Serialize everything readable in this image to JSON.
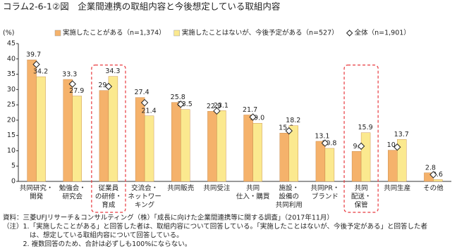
{
  "chart_data": {
    "type": "bar",
    "title": "コラム2-6-1②図　企業間連携の取組内容と今後想定している取組内容",
    "y_unit_label": "(%)",
    "categories": [
      [
        "共同研究・",
        "開発"
      ],
      [
        "勉強会・",
        "研究会"
      ],
      [
        "従業員",
        "の研修・",
        "育成"
      ],
      [
        "交流会・",
        "ネットワー",
        "キング"
      ],
      [
        "共同販売"
      ],
      [
        "共同受注"
      ],
      [
        "共同",
        "仕入・購買"
      ],
      [
        "施設・",
        "設備の",
        "共同利用"
      ],
      [
        "共同PR・",
        "ブランド"
      ],
      [
        "共同",
        "配送・",
        "保管"
      ],
      [
        "共同生産"
      ],
      [
        "その他"
      ]
    ],
    "series": [
      {
        "name": "実施したことがある（n=1,374）",
        "color": "#f5b26b",
        "values": [
          39.7,
          33.3,
          29.7,
          27.4,
          25.8,
          22.9,
          21.7,
          15.8,
          13.1,
          9.8,
          10.2,
          2.8
        ],
        "value_labels": [
          "39.7",
          "33.3",
          "29.7",
          "27.4",
          "25.8",
          "22.9",
          "21.7",
          "15.8",
          "13.1",
          "9.8",
          "10.2",
          "2.8"
        ]
      },
      {
        "name": "実施したことはないが、今後予定がある（n=527）",
        "color": "#fbe98f",
        "values": [
          34.2,
          27.9,
          34.3,
          21.4,
          23.5,
          23.1,
          19.0,
          18.2,
          10.8,
          15.9,
          13.7,
          0.6
        ],
        "value_labels": [
          "34.2",
          "27.9",
          "34.3",
          "21.4",
          "23.5",
          "23.1",
          "19.0",
          "18.2",
          "10.8",
          "15.9",
          "13.7",
          "0.6"
        ]
      },
      {
        "name": "全体（n=1,901）",
        "color": "#ffffff",
        "marker": "diamond",
        "values": [
          38.2,
          31.8,
          31.0,
          25.7,
          25.2,
          23.0,
          21.0,
          16.5,
          12.5,
          11.5,
          11.2,
          2.2
        ]
      }
    ],
    "ylim": [
      0,
      45
    ],
    "yticks": [
      0,
      5,
      10,
      15,
      20,
      25,
      30,
      35,
      40,
      45
    ],
    "grid": false,
    "highlighted_categories": [
      2,
      9
    ],
    "highlight_color": "#e8383d",
    "notes": [
      "資料：三菱UFJリサーチ＆コンサルティング（株）「成長に向けた企業間連携等に関する調査」（2017年11月）",
      "（注）1.「実施したことがある」と回答した者は、取組内容について回答している。「実施したことはないが、今後予定がある」と回答した者",
      "　　　　は、想定している取組内容について回答している。",
      "　　　2. 複数回答のため、合計は必ずしも100%にならない。"
    ]
  }
}
